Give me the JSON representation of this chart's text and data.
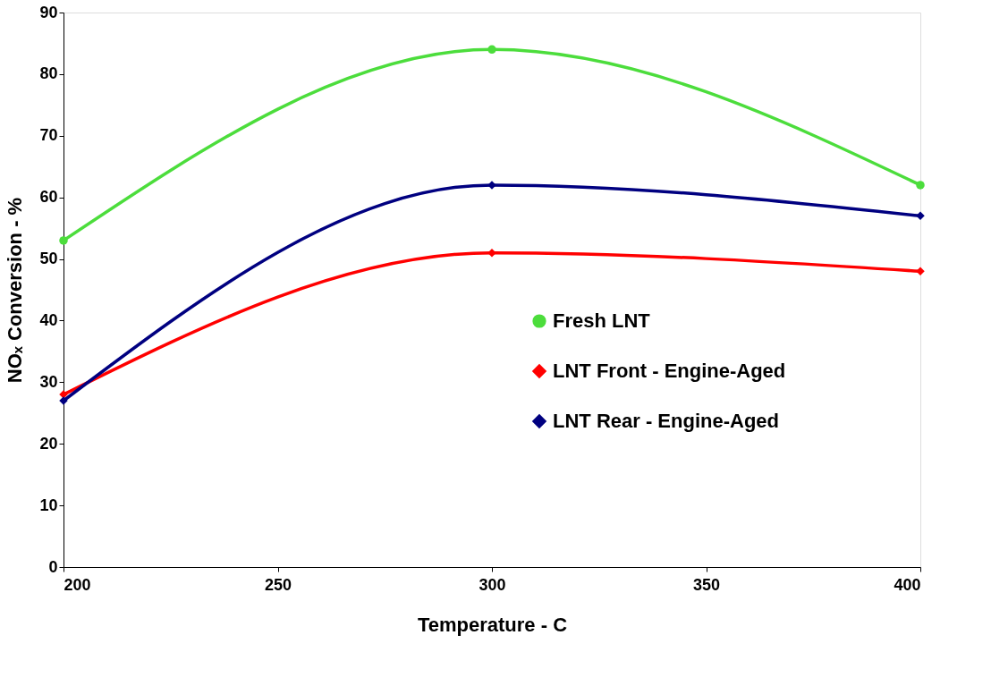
{
  "chart_data": {
    "type": "line",
    "xlabel": "Temperature - C",
    "ylabel": "NOₓ Conversion - %",
    "x": [
      200,
      300,
      400
    ],
    "series": [
      {
        "name": "Fresh LNT",
        "color": "#4cdd3c",
        "marker": "circle",
        "values": [
          53,
          84,
          62
        ]
      },
      {
        "name": "LNT Front - Engine-Aged",
        "color": "#ff0000",
        "marker": "diamond",
        "values": [
          28,
          51,
          48
        ]
      },
      {
        "name": "LNT Rear - Engine-Aged",
        "color": "#000080",
        "marker": "diamond",
        "values": [
          27,
          62,
          57
        ]
      }
    ],
    "xlim": [
      200,
      400
    ],
    "xticks": [
      200,
      250,
      300,
      350,
      400
    ],
    "ylim": [
      0,
      90
    ],
    "yticks": [
      0,
      10,
      20,
      30,
      40,
      50,
      60,
      70,
      80,
      90
    ],
    "grid": false,
    "legend": "bottom right",
    "line_style": "solid"
  }
}
